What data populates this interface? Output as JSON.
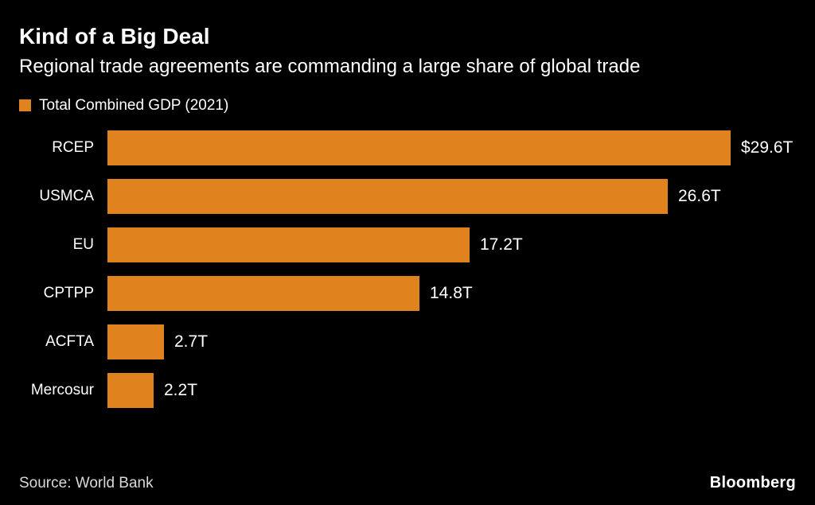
{
  "header": {
    "title": "Kind of a Big Deal",
    "subtitle": "Regional trade agreements are commanding a large share of global trade"
  },
  "legend": {
    "label": "Total Combined GDP (2021)",
    "color": "#E0831E"
  },
  "chart_data": {
    "type": "bar",
    "orientation": "horizontal",
    "title": "Kind of a Big Deal",
    "subtitle": "Regional trade agreements are commanding a large share of global trade",
    "series_name": "Total Combined GDP (2021)",
    "categories": [
      "RCEP",
      "USMCA",
      "EU",
      "CPTPP",
      "ACFTA",
      "Mercosur"
    ],
    "values": [
      29.6,
      26.6,
      17.2,
      14.8,
      2.7,
      2.2
    ],
    "value_labels": [
      "$29.6T",
      "26.6T",
      "17.2T",
      "14.8T",
      "2.7T",
      "2.2T"
    ],
    "bar_color": "#E0831E",
    "xlim": [
      0,
      29.6
    ],
    "grid": false,
    "legend_position": "top-left"
  },
  "footer": {
    "source": "Source: World Bank",
    "brand": "Bloomberg"
  }
}
